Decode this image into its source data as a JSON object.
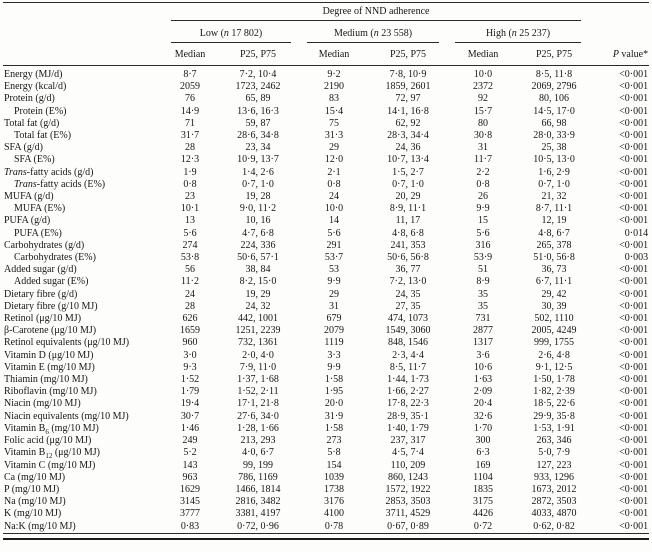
{
  "table": {
    "spanner": "Degree of NND adherence",
    "groups": [
      {
        "label_parts": [
          {
            "t": "Low ("
          },
          {
            "t": "n",
            "s": "i"
          },
          {
            "t": " 17 802)"
          }
        ]
      },
      {
        "label_parts": [
          {
            "t": "Medium ("
          },
          {
            "t": "n",
            "s": "i"
          },
          {
            "t": " 23 558)"
          }
        ]
      },
      {
        "label_parts": [
          {
            "t": "High ("
          },
          {
            "t": "n",
            "s": "i"
          },
          {
            "t": " 25 237)"
          }
        ]
      }
    ],
    "median_label": "Median",
    "p25p75_label": "P25, P75",
    "p_value_header_parts": [
      {
        "t": "P",
        "s": "i"
      },
      {
        "t": " value*"
      }
    ],
    "rows": [
      {
        "label": "Energy (MJ/d)",
        "values": [
          "8·7",
          "7·2, 10·4",
          "9·2",
          "7·8, 10·9",
          "10·0",
          "8·5, 11·8",
          "<0·001"
        ]
      },
      {
        "label": "Energy (kcal/d)",
        "values": [
          "2059",
          "1723, 2462",
          "2190",
          "1859, 2601",
          "2372",
          "2069, 2796",
          "<0·001"
        ]
      },
      {
        "label": "Protein (g/d)",
        "values": [
          "76",
          "65, 89",
          "83",
          "72, 97",
          "92",
          "80, 106",
          "<0·001"
        ]
      },
      {
        "label": "Protein (E%)",
        "indent": true,
        "values": [
          "14·9",
          "13·6, 16·3",
          "15·4",
          "14·1, 16·8",
          "15·7",
          "14·5, 17·0",
          "<0·001"
        ]
      },
      {
        "label": "Total fat (g/d)",
        "values": [
          "71",
          "59, 87",
          "75",
          "62, 92",
          "80",
          "66, 98",
          "<0·001"
        ]
      },
      {
        "label": "Total fat (E%)",
        "indent": true,
        "values": [
          "31·7",
          "28·6, 34·8",
          "31·3",
          "28·3, 34·4",
          "30·8",
          "28·0, 33·9",
          "<0·001"
        ]
      },
      {
        "label": "SFA (g/d)",
        "values": [
          "28",
          "23, 34",
          "29",
          "24, 36",
          "31",
          "25, 38",
          "<0·001"
        ]
      },
      {
        "label": "SFA (E%)",
        "indent": true,
        "values": [
          "12·3",
          "10·9, 13·7",
          "12·0",
          "10·7, 13·4",
          "11·7",
          "10·5, 13·0",
          "<0·001"
        ]
      },
      {
        "label_parts": [
          {
            "t": "Trans",
            "s": "i"
          },
          {
            "t": "-fatty acids (g/d)"
          }
        ],
        "values": [
          "1·9",
          "1·4, 2·6",
          "2·1",
          "1·5, 2·7",
          "2·2",
          "1·6, 2·9",
          "<0·001"
        ]
      },
      {
        "label_parts": [
          {
            "t": "Trans",
            "s": "i"
          },
          {
            "t": "-fatty acids (E%)"
          }
        ],
        "indent": true,
        "values": [
          "0·8",
          "0·7, 1·0",
          "0·8",
          "0·7, 1·0",
          "0·8",
          "0·7, 1·0",
          "<0·001"
        ]
      },
      {
        "label": "MUFA (g/d)",
        "values": [
          "23",
          "19, 28",
          "24",
          "20, 29",
          "26",
          "21, 32",
          "<0·001"
        ]
      },
      {
        "label": "MUFA (E%)",
        "indent": true,
        "values": [
          "10·1",
          "9·0, 11·2",
          "10·0",
          "8·9, 11·1",
          "9·9",
          "8·7, 11·1",
          "<0·001"
        ]
      },
      {
        "label": "PUFA (g/d)",
        "values": [
          "13",
          "10, 16",
          "14",
          "11, 17",
          "15",
          "12, 19",
          "<0·001"
        ]
      },
      {
        "label": "PUFA (E%)",
        "indent": true,
        "values": [
          "5·6",
          "4·7, 6·8",
          "5·6",
          "4·8, 6·8",
          "5·6",
          "4·8, 6·7",
          "0·014"
        ]
      },
      {
        "label": "Carbohydrates (g/d)",
        "values": [
          "274",
          "224, 336",
          "291",
          "241, 353",
          "316",
          "265, 378",
          "<0·001"
        ]
      },
      {
        "label": "Carbohydrates (E%)",
        "indent": true,
        "values": [
          "53·8",
          "50·6, 57·1",
          "53·7",
          "50·6, 56·8",
          "53·9",
          "51·0, 56·8",
          "0·003"
        ]
      },
      {
        "label": "Added sugar (g/d)",
        "values": [
          "56",
          "38, 84",
          "53",
          "36, 77",
          "51",
          "36, 73",
          "<0·001"
        ]
      },
      {
        "label": "Added sugar (E%)",
        "indent": true,
        "values": [
          "11·2",
          "8·2, 15·0",
          "9·9",
          "7·2, 13·0",
          "8·9",
          "6·7, 11·1",
          "<0·001"
        ]
      },
      {
        "label": "Dietary fibre (g/d)",
        "values": [
          "24",
          "19, 29",
          "29",
          "24, 35",
          "35",
          "29, 42",
          "<0·001"
        ]
      },
      {
        "label": "Dietary fibre (g/10 MJ)",
        "values": [
          "28",
          "24, 32",
          "31",
          "27, 35",
          "35",
          "30, 39",
          "<0·001"
        ]
      },
      {
        "label": "Retinol (μg/10 MJ)",
        "values": [
          "626",
          "442, 1001",
          "679",
          "474, 1073",
          "731",
          "502, 1110",
          "<0·001"
        ]
      },
      {
        "label": "β-Carotene (μg/10 MJ)",
        "values": [
          "1659",
          "1251, 2239",
          "2079",
          "1549, 3060",
          "2877",
          "2005, 4249",
          "<0·001"
        ]
      },
      {
        "label": "Retinol equivalents (μg/10 MJ)",
        "values": [
          "960",
          "732, 1361",
          "1119",
          "848, 1546",
          "1317",
          "999, 1755",
          "<0·001"
        ]
      },
      {
        "label": "Vitamin D (μg/10 MJ)",
        "values": [
          "3·0",
          "2·0, 4·0",
          "3·3",
          "2·3, 4·4",
          "3·6",
          "2·6, 4·8",
          "<0·001"
        ]
      },
      {
        "label": "Vitamin E (mg/10 MJ)",
        "values": [
          "9·3",
          "7·9, 11·0",
          "9·9",
          "8·5, 11·7",
          "10·6",
          "9·1, 12·5",
          "<0·001"
        ]
      },
      {
        "label": "Thiamin (mg/10 MJ)",
        "values": [
          "1·52",
          "1·37, 1·68",
          "1·58",
          "1·44, 1·73",
          "1·63",
          "1·50, 1·78",
          "<0·001"
        ]
      },
      {
        "label": "Riboflavin (mg/10 MJ)",
        "values": [
          "1·79",
          "1·52, 2·11",
          "1·95",
          "1·66, 2·27",
          "2·09",
          "1·82, 2·39",
          "<0·001"
        ]
      },
      {
        "label": "Niacin (mg/10 MJ)",
        "values": [
          "19·4",
          "17·1, 21·8",
          "20·0",
          "17·8, 22·3",
          "20·4",
          "18·5, 22·6",
          "<0·001"
        ]
      },
      {
        "label": "Niacin equivalents (mg/10 MJ)",
        "values": [
          "30·7",
          "27·6, 34·0",
          "31·9",
          "28·9, 35·1",
          "32·6",
          "29·9, 35·8",
          "<0·001"
        ]
      },
      {
        "label_parts": [
          {
            "t": "Vitamin B"
          },
          {
            "t": "6",
            "s": "sub"
          },
          {
            "t": " (mg/10 MJ)"
          }
        ],
        "values": [
          "1·46",
          "1·28, 1·66",
          "1·58",
          "1·40, 1·79",
          "1·70",
          "1·53, 1·91",
          "<0·001"
        ]
      },
      {
        "label": "Folic acid (μg/10 MJ)",
        "values": [
          "249",
          "213, 293",
          "273",
          "237, 317",
          "300",
          "263, 346",
          "<0·001"
        ]
      },
      {
        "label_parts": [
          {
            "t": "Vitamin B"
          },
          {
            "t": "12",
            "s": "sub"
          },
          {
            "t": " (μg/10 MJ)"
          }
        ],
        "values": [
          "5·2",
          "4·0, 6·7",
          "5·8",
          "4·5, 7·4",
          "6·3",
          "5·0, 7·9",
          "<0·001"
        ]
      },
      {
        "label": "Vitamin C (mg/10 MJ)",
        "values": [
          "143",
          "99, 199",
          "154",
          "110, 209",
          "169",
          "127, 223",
          "<0·001"
        ]
      },
      {
        "label": "Ca (mg/10 MJ)",
        "values": [
          "963",
          "786, 1169",
          "1039",
          "860, 1243",
          "1104",
          "933, 1296",
          "<0·001"
        ]
      },
      {
        "label": "P (mg/10 MJ)",
        "values": [
          "1629",
          "1466, 1814",
          "1738",
          "1572, 1922",
          "1835",
          "1673, 2012",
          "<0·001"
        ]
      },
      {
        "label": "Na (mg/10 MJ)",
        "values": [
          "3145",
          "2816, 3482",
          "3176",
          "2853, 3503",
          "3175",
          "2872, 3503",
          "<0·001"
        ]
      },
      {
        "label": "K (mg/10 MJ)",
        "values": [
          "3777",
          "3381, 4197",
          "4100",
          "3711, 4529",
          "4426",
          "4033, 4870",
          "<0·001"
        ]
      },
      {
        "label": "Na:K (mg/10 MJ)",
        "values": [
          "0·83",
          "0·72, 0·96",
          "0·78",
          "0·67, 0·89",
          "0·72",
          "0·62, 0·82",
          "<0·001"
        ]
      }
    ]
  }
}
